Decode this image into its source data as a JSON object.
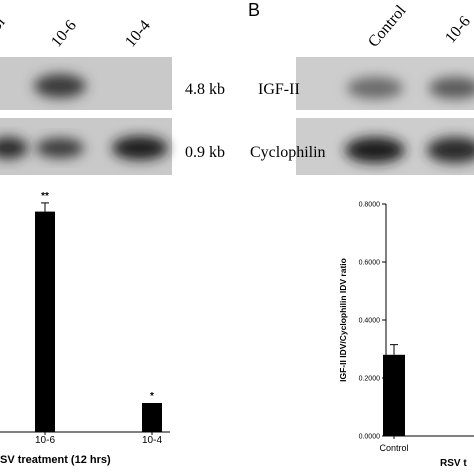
{
  "panel_label": "B",
  "blot_left": {
    "lanes": [
      "ol",
      "10-6",
      "10-4"
    ],
    "sizes": [
      "4.8 kb",
      "0.9 kb"
    ]
  },
  "blot_right": {
    "lanes": [
      "Control",
      "10-6"
    ],
    "labels": [
      "IGF-II",
      "Cyclophilin"
    ]
  },
  "chart_data": [
    {
      "type": "bar",
      "categories": [
        "10-6",
        "10-4"
      ],
      "values": [
        0.76,
        0.1
      ],
      "errors": [
        0.03,
        null
      ],
      "annotations": [
        "**",
        "*"
      ],
      "color": "#000000",
      "ylim": [
        0,
        0.8
      ],
      "x_label": "SV treatment (12 hrs)"
    },
    {
      "type": "bar",
      "categories": [
        "Control"
      ],
      "values": [
        0.28
      ],
      "errors": [
        0.035
      ],
      "color": "#000000",
      "ylim": [
        0,
        0.8
      ],
      "yticks": [
        {
          "value": 0.8,
          "label": "0.8000"
        },
        {
          "value": 0.6,
          "label": "0.6000"
        },
        {
          "value": 0.4,
          "label": "0.4000"
        },
        {
          "value": 0.2,
          "label": "0.2000"
        },
        {
          "value": 0,
          "label": "0.0000"
        }
      ],
      "y_label": "IGF-II IDV/Cyclophilin IDV ratio",
      "x_label": "RSV t"
    }
  ]
}
